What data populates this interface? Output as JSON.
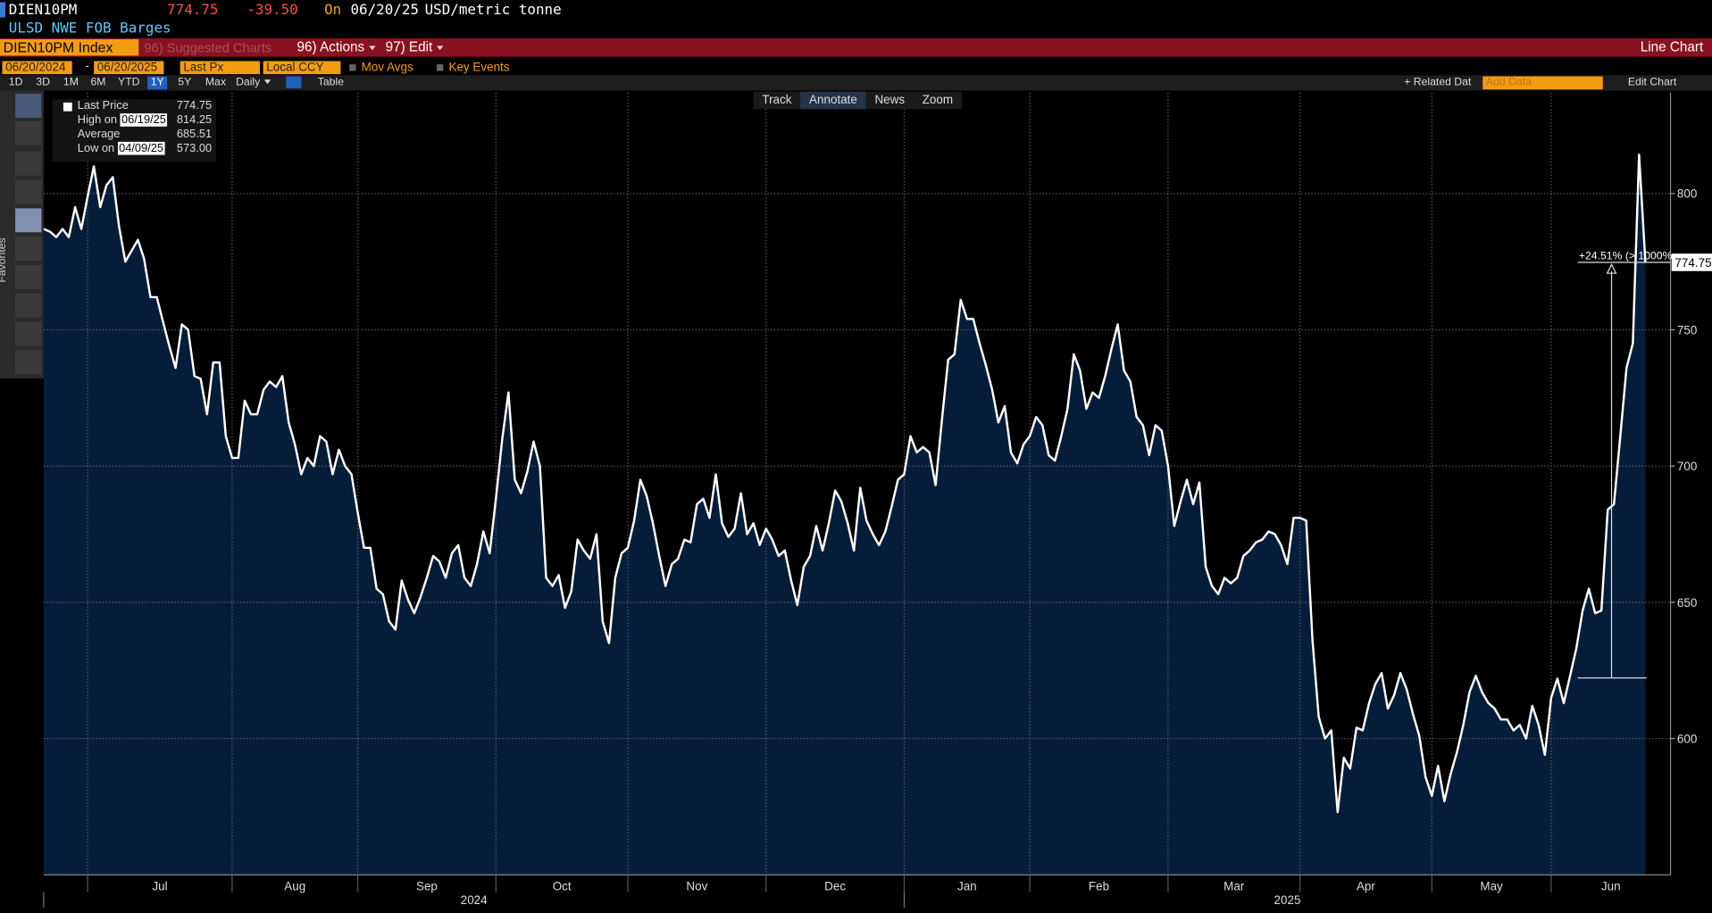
{
  "header": {
    "ticker": "DIEN10PM",
    "price": "774.75",
    "change": "-39.50",
    "on": "On",
    "date": "06/20/25",
    "unit": "USD/metric tonne",
    "description": "ULSD NWE FOB Barges"
  },
  "toolbar": {
    "security": "DIEN10PM Index",
    "suggested": "96) Suggested Charts",
    "actions": "96) Actions",
    "edit": "97) Edit",
    "chart_type": "Line Chart"
  },
  "controls": {
    "start": "06/20/2024",
    "dash": "-",
    "end": "06/20/2025",
    "field": "Last Px",
    "currency": "Local CCY",
    "mov_avgs": "Mov Avgs",
    "key_events": "Key Events"
  },
  "periods": [
    "1D",
    "3D",
    "1M",
    "6M",
    "YTD",
    "1Y",
    "5Y",
    "Max"
  ],
  "selected_period": "1Y",
  "frequency": "Daily",
  "table": "Table",
  "related": "+ Related Dat",
  "add_data": "Add Data",
  "edit_chart": "Edit Chart",
  "chart_tools": [
    "Track",
    "Annotate",
    "News",
    "Zoom"
  ],
  "favorites": "Favorites",
  "chart_data": {
    "type": "area",
    "series": [
      {
        "name": "Last Price",
        "color": "#ffffff",
        "fill": "#061d3a",
        "values": [
          787,
          786,
          784,
          787,
          784,
          795,
          787,
          799,
          810,
          795,
          803,
          806,
          788,
          775,
          779,
          783,
          776,
          762,
          762,
          753,
          744,
          736,
          752,
          750,
          733,
          732,
          719,
          738,
          738,
          711,
          703,
          703,
          724,
          719,
          719,
          728,
          731,
          729,
          733,
          716,
          708,
          697,
          703,
          700,
          711,
          709,
          697,
          706,
          700,
          697,
          683,
          670,
          670,
          655,
          653,
          643,
          640,
          658,
          651,
          646,
          652,
          659,
          667,
          665,
          659,
          668,
          671,
          659,
          656,
          664,
          676,
          668,
          688,
          710,
          727,
          695,
          690,
          698,
          709,
          700,
          659,
          656,
          660,
          648,
          654,
          673,
          669,
          666,
          675,
          643,
          635,
          659,
          668,
          670,
          680,
          695,
          689,
          679,
          667,
          656,
          664,
          666,
          673,
          672,
          686,
          688,
          681,
          697,
          679,
          674,
          677,
          690,
          675,
          679,
          671,
          677,
          673,
          667,
          669,
          658,
          649,
          663,
          667,
          678,
          669,
          679,
          691,
          687,
          679,
          669,
          692,
          680,
          675,
          671,
          676,
          685,
          695,
          697,
          711,
          705,
          707,
          705,
          693,
          717,
          739,
          741,
          761,
          754,
          754,
          745,
          737,
          728,
          716,
          722,
          705,
          701,
          708,
          711,
          718,
          715,
          704,
          702,
          711,
          721,
          741,
          735,
          721,
          727,
          725,
          733,
          743,
          752,
          735,
          731,
          718,
          715,
          704,
          715,
          713,
          700,
          678,
          687,
          695,
          686,
          694,
          663,
          656,
          653,
          659,
          657,
          659,
          667,
          669,
          672,
          673,
          676,
          675,
          671,
          664,
          681,
          681,
          680,
          636,
          608,
          600,
          603,
          573,
          593,
          589,
          604,
          603,
          613,
          620,
          624,
          611,
          616,
          624,
          618,
          609,
          601,
          586,
          579,
          590,
          577,
          587,
          595,
          605,
          617,
          623,
          617,
          613,
          611,
          607,
          607,
          603,
          605,
          600,
          612,
          605,
          594,
          615,
          622,
          613,
          623,
          633,
          647,
          655,
          646,
          647,
          684,
          686,
          711,
          736,
          745,
          814.25,
          774.75
        ]
      }
    ],
    "xlim": [
      0,
      259
    ],
    "xticks": [
      {
        "value": 7,
        "label": "Jul"
      },
      {
        "value": 30,
        "label": "Aug"
      },
      {
        "value": 50,
        "label": "Sep"
      },
      {
        "value": 72,
        "label": "Oct"
      },
      {
        "value": 93,
        "label": "Nov"
      },
      {
        "value": 115,
        "label": "Dec"
      },
      {
        "value": 137,
        "label": "Jan"
      },
      {
        "value": 157,
        "label": "Feb"
      },
      {
        "value": 179,
        "label": "Mar"
      },
      {
        "value": 200,
        "label": "Apr"
      },
      {
        "value": 221,
        "label": "May"
      },
      {
        "value": 240,
        "label": "Jun"
      }
    ],
    "year_ticks": [
      {
        "value": 0,
        "label": "2024"
      },
      {
        "value": 137,
        "label": "2025"
      }
    ],
    "ylim": [
      550,
      837
    ],
    "yticks": [
      600,
      650,
      700,
      750,
      800
    ],
    "grid": true,
    "last_value": 774.75,
    "stats": [
      {
        "label": "High on",
        "date": "06/19/25",
        "value": "814.25"
      },
      {
        "label": "Average",
        "value": "685.51"
      },
      {
        "label": "Low on",
        "date": "04/09/25",
        "value": "573.00"
      }
    ],
    "measure": {
      "from": 622.25,
      "to": 774.75,
      "label": "+24.51% (> 1000%"
    }
  }
}
